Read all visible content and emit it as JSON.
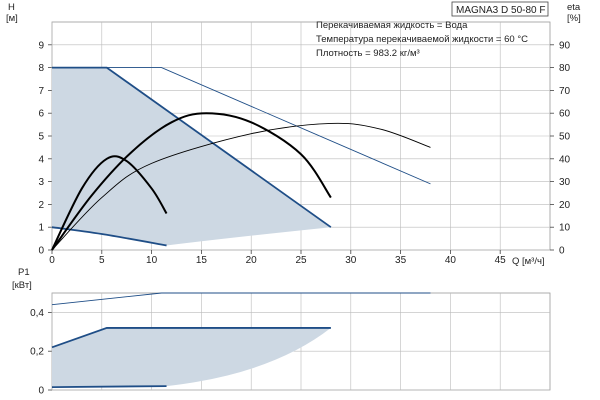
{
  "model": "MAGNA3 D 50-80 F",
  "info": [
    "Перекачиваемая жидкость = Вода",
    "Температура перекачиваемой жидкости = 60 °C",
    "Плотность = 983.2 кг/м³"
  ],
  "colors": {
    "fill": "#cdd8e3",
    "dark": "#1f4e87",
    "black": "#000000",
    "grid": "#bbbbbb"
  },
  "chart_data": [
    {
      "type": "line",
      "title": "H",
      "ylabel": "H",
      "yunit": "[м]",
      "y2label": "eta",
      "y2unit": "[%]",
      "xlabel": "Q",
      "xunit": "[м³/ч]",
      "xlim": [
        0,
        50
      ],
      "ylim": [
        0,
        10
      ],
      "y2lim": [
        0,
        100
      ],
      "xticks": [
        0,
        5,
        10,
        15,
        20,
        25,
        30,
        35,
        40,
        45
      ],
      "yticks": [
        0,
        1,
        2,
        3,
        4,
        5,
        6,
        7,
        8,
        9
      ],
      "y2ticks": [
        0,
        10,
        20,
        30,
        40,
        50,
        60,
        70,
        80,
        90
      ],
      "grid": true,
      "series": [
        {
          "kind": "area",
          "points": [
            [
              0,
              8
            ],
            [
              5.5,
              8
            ],
            [
              28,
              1
            ],
            [
              11.5,
              0.2
            ],
            [
              0,
              1
            ]
          ]
        },
        {
          "kind": "head",
          "weight": "bold",
          "points": [
            [
              0,
              8
            ],
            [
              5.5,
              8
            ],
            [
              28,
              1
            ]
          ]
        },
        {
          "kind": "head",
          "weight": "bold",
          "points": [
            [
              0,
              1
            ],
            [
              5,
              0.7
            ],
            [
              11.5,
              0.2
            ]
          ]
        },
        {
          "kind": "head",
          "weight": "thin",
          "points": [
            [
              0,
              8
            ],
            [
              11,
              8
            ],
            [
              38,
              2.9
            ]
          ]
        },
        {
          "kind": "eta",
          "weight": "bold",
          "points": [
            [
              0,
              0
            ],
            [
              4,
              24
            ],
            [
              8,
              43
            ],
            [
              12,
              56
            ],
            [
              15.5,
              60
            ],
            [
              20,
              56
            ],
            [
              25,
              42
            ],
            [
              28,
              23
            ]
          ]
        },
        {
          "kind": "eta",
          "weight": "bold",
          "points": [
            [
              0,
              0
            ],
            [
              3,
              27
            ],
            [
              5.5,
              40
            ],
            [
              7.5,
              39
            ],
            [
              10,
              27
            ],
            [
              11.5,
              16
            ]
          ]
        },
        {
          "kind": "eta",
          "weight": "thin",
          "points": [
            [
              0,
              0
            ],
            [
              5,
              23
            ],
            [
              10,
              38
            ],
            [
              20,
              51
            ],
            [
              28,
              55.5
            ],
            [
              33,
              53
            ],
            [
              38,
              45
            ]
          ]
        }
      ]
    },
    {
      "type": "line",
      "title": "P1",
      "ylabel": "P1",
      "yunit": "[кВт]",
      "xlim": [
        0,
        50
      ],
      "ylim": [
        0,
        0.5
      ],
      "yticks": [
        "0",
        "0,2",
        "0,4"
      ],
      "grid": true,
      "series": [
        {
          "kind": "area",
          "points": [
            [
              0,
              0.22
            ],
            [
              5.5,
              0.32
            ],
            [
              28,
              0.32
            ],
            [
              11.5,
              0.02
            ],
            [
              0,
              0.02
            ]
          ]
        },
        {
          "kind": "power",
          "weight": "bold",
          "points": [
            [
              0,
              0.22
            ],
            [
              5.5,
              0.32
            ],
            [
              28,
              0.32
            ]
          ]
        },
        {
          "kind": "power",
          "weight": "bold",
          "points": [
            [
              0,
              0.015
            ],
            [
              11.5,
              0.02
            ]
          ]
        },
        {
          "kind": "power",
          "weight": "thin",
          "points": [
            [
              0,
              0.44
            ],
            [
              11,
              0.5
            ],
            [
              38,
              0.5
            ]
          ]
        }
      ]
    }
  ]
}
